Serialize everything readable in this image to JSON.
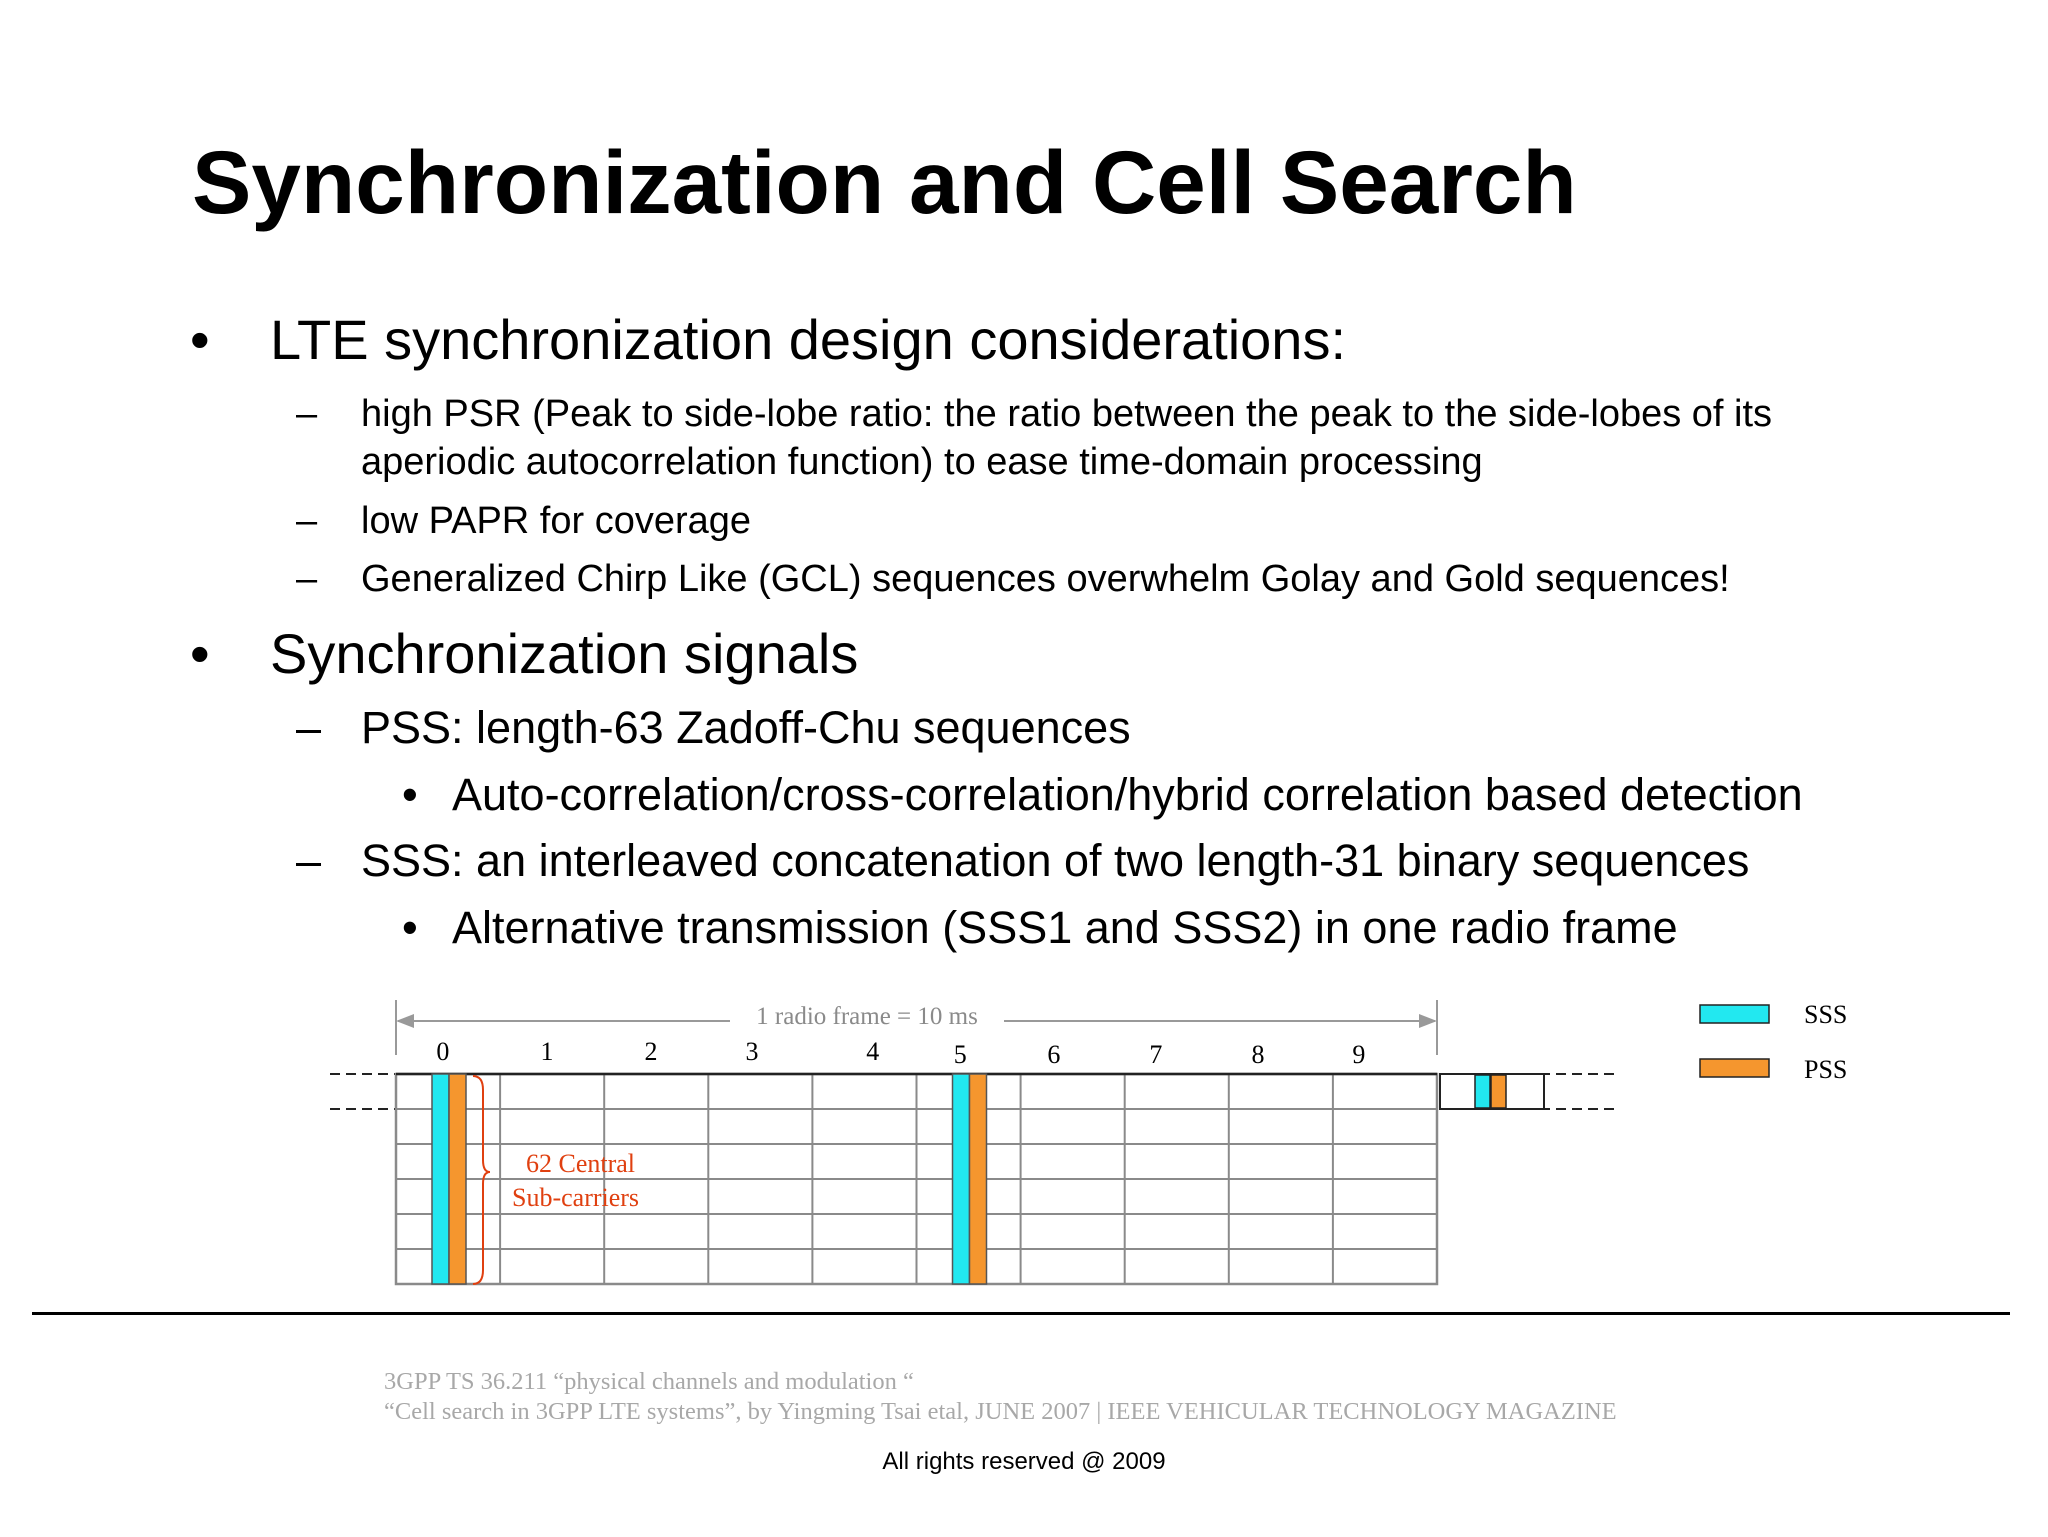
{
  "title": "Synchronization and Cell Search",
  "bullets": {
    "b1": {
      "marker": "•",
      "text": "LTE synchronization design considerations:"
    },
    "b1_sub1": {
      "marker": "–",
      "line1": "high PSR (Peak to side-lobe ratio: the ratio between the peak to the side-lobes of its",
      "line2": "aperiodic autocorrelation function) to ease time-domain processing"
    },
    "b1_sub2": {
      "marker": "–",
      "text": "low PAPR for coverage"
    },
    "b1_sub3": {
      "marker": "–",
      "text": "Generalized Chirp Like (GCL) sequences overwhelm Golay and Gold sequences!"
    },
    "b2": {
      "marker": "•",
      "text": "Synchronization signals"
    },
    "b2_sub1": {
      "marker": "–",
      "text": "PSS: length-63 Zadoff-Chu sequences"
    },
    "b2_sub1_sub1": {
      "marker": "•",
      "text": "Auto-correlation/cross-correlation/hybrid correlation based detection"
    },
    "b2_sub2": {
      "marker": "–",
      "text": "SSS:  an interleaved concatenation of two length-31 binary sequences"
    },
    "b2_sub2_sub1": {
      "marker": "•",
      "text": "Alternative transmission (SSS1 and SSS2) in one radio frame"
    }
  },
  "diagram": {
    "frame_label": "1 radio frame = 10 ms",
    "subframes": [
      "0",
      "1",
      "2",
      "3",
      "4",
      "5",
      "6",
      "7",
      "8",
      "9"
    ],
    "subcarrier_label_line1": "62 Central",
    "subcarrier_label_line2": "Sub-carriers",
    "legend": [
      {
        "label": "SSS",
        "color": "#22e8f0"
      },
      {
        "label": "PSS",
        "color": "#f5962e"
      }
    ],
    "colors": {
      "sss": "#22e8f0",
      "pss": "#f5962e",
      "grid": "#8a8a8a",
      "annotation": "#e04010"
    }
  },
  "footer": {
    "ref1": "3GPP TS 36.211 “physical channels and modulation “",
    "ref2": "“Cell search in 3GPP LTE systems”, by Yingming Tsai etal,  JUNE 2007 | IEEE VEHICULAR TECHNOLOGY MAGAZINE",
    "copyright": "All rights reserved @ 2009"
  }
}
